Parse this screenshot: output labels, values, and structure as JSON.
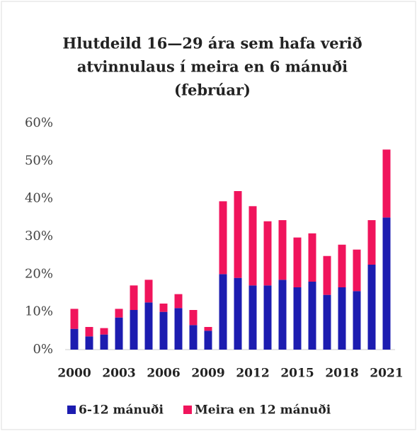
{
  "chart_data": {
    "type": "stacked-bar",
    "title": [
      "Hlutdeild 16—29 ára sem hafa verið",
      "atvinnulaus í meira en 6 mánuði",
      "(febrúar)"
    ],
    "categories": [
      "2000",
      null,
      null,
      "2003",
      null,
      null,
      "2006",
      null,
      null,
      "2009",
      null,
      null,
      "2012",
      null,
      null,
      "2015",
      null,
      null,
      "2018",
      null,
      null,
      "2021"
    ],
    "series": [
      {
        "name": "6-12 mánuði",
        "color": "#1c1cb0",
        "values": [
          5.5,
          3.5,
          4,
          8.5,
          10.5,
          12.5,
          10,
          11,
          6.5,
          5,
          20,
          19,
          17,
          17,
          18.5,
          16.5,
          18,
          14.5,
          16.5,
          15.5,
          22.5,
          35
        ]
      },
      {
        "name": "Meira en 12 mánuði",
        "color": "#f0145c",
        "values": [
          5.3,
          2.5,
          1.7,
          2.3,
          6.5,
          6,
          2.2,
          3.7,
          4,
          1,
          19.3,
          23,
          21,
          17,
          15.8,
          13.2,
          12.8,
          10.3,
          11.3,
          11,
          11.8,
          18
        ]
      }
    ],
    "ylim": [
      0,
      60
    ],
    "yticks": [
      {
        "value": 0,
        "label": "0%"
      },
      {
        "value": 10,
        "label": "10%"
      },
      {
        "value": 20,
        "label": "20%"
      },
      {
        "value": 30,
        "label": "30%"
      },
      {
        "value": 40,
        "label": "40%"
      },
      {
        "value": 50,
        "label": "50%"
      },
      {
        "value": 60,
        "label": "60%"
      }
    ],
    "legend": "bottom"
  }
}
